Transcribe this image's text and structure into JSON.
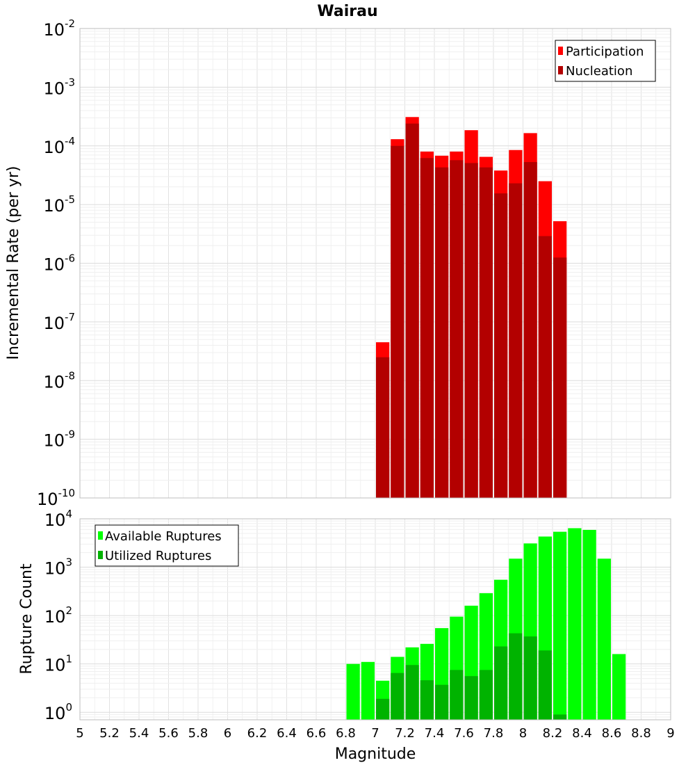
{
  "chart_data": [
    {
      "type": "bar",
      "title": "Wairau",
      "xlabel": "",
      "ylabel": "Incremental Rate (per yr)",
      "xlim": [
        5,
        9
      ],
      "ylim": [
        1e-10,
        0.01
      ],
      "yscale": "log",
      "grid": true,
      "legend_position": "top-right",
      "x": [
        7.05,
        7.15,
        7.25,
        7.35,
        7.45,
        7.55,
        7.65,
        7.75,
        7.85,
        7.95,
        8.05,
        8.15,
        8.25
      ],
      "series": [
        {
          "name": "Participation",
          "color": "#ff0000",
          "values": [
            4.5e-08,
            0.00013,
            0.00031,
            8e-05,
            6.8e-05,
            8e-05,
            0.000185,
            6.5e-05,
            3.8e-05,
            8.5e-05,
            0.000165,
            2.5e-05,
            5.2e-06
          ]
        },
        {
          "name": "Nucleation",
          "color": "#b30000",
          "values": [
            2.5e-08,
            0.0001,
            0.00024,
            6.2e-05,
            4.3e-05,
            5.7e-05,
            5.1e-05,
            4.3e-05,
            1.55e-05,
            2.3e-05,
            5.3e-05,
            2.9e-06,
            1.25e-06
          ]
        }
      ],
      "y_ticks": [
        {
          "base": "10",
          "exp": "-2"
        },
        {
          "base": "10",
          "exp": "-3"
        },
        {
          "base": "10",
          "exp": "-4"
        },
        {
          "base": "10",
          "exp": "-5"
        },
        {
          "base": "10",
          "exp": "-6"
        },
        {
          "base": "10",
          "exp": "-7"
        },
        {
          "base": "10",
          "exp": "-8"
        },
        {
          "base": "10",
          "exp": "-9"
        },
        {
          "base": "10",
          "exp": "-10"
        }
      ]
    },
    {
      "type": "bar",
      "title": "",
      "xlabel": "Magnitude",
      "ylabel": "Rupture Count",
      "xlim": [
        5,
        9
      ],
      "ylim": [
        0.7,
        10000
      ],
      "yscale": "log",
      "grid": true,
      "legend_position": "top-left",
      "x": [
        6.85,
        6.95,
        7.05,
        7.15,
        7.25,
        7.35,
        7.45,
        7.55,
        7.65,
        7.75,
        7.85,
        7.95,
        8.05,
        8.15,
        8.25,
        8.35,
        8.45,
        8.55,
        8.65
      ],
      "series": [
        {
          "name": "Available Ruptures",
          "color": "#00ff00",
          "values": [
            10,
            11,
            4.5,
            14,
            22,
            26,
            55,
            95,
            160,
            290,
            550,
            1500,
            3100,
            4300,
            5400,
            6400,
            5900,
            1500,
            16
          ]
        },
        {
          "name": "Utilized Ruptures",
          "color": "#00b300",
          "values": [
            0,
            0,
            1.9,
            6.5,
            9.5,
            4.6,
            3.7,
            7.5,
            5.6,
            7.5,
            23,
            43,
            37,
            19,
            0.9,
            0,
            0,
            0,
            0
          ]
        }
      ],
      "y_ticks": [
        {
          "base": "10",
          "exp": "4"
        },
        {
          "base": "10",
          "exp": "3"
        },
        {
          "base": "10",
          "exp": "2"
        },
        {
          "base": "10",
          "exp": "1"
        },
        {
          "base": "10",
          "exp": "0"
        }
      ],
      "x_ticks": [
        "5",
        "5.2",
        "5.4",
        "5.6",
        "5.8",
        "6",
        "6.2",
        "6.4",
        "6.6",
        "6.8",
        "7",
        "7.2",
        "7.4",
        "7.6",
        "7.8",
        "8",
        "8.2",
        "8.4",
        "8.6",
        "8.8",
        "9"
      ]
    }
  ]
}
